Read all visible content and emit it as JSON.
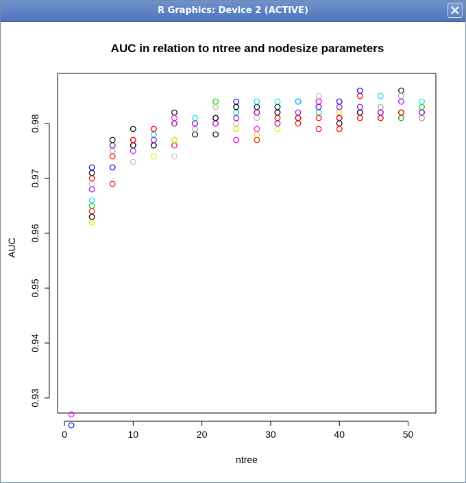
{
  "window": {
    "title": "R Graphics: Device 2 (ACTIVE)"
  },
  "chart_data": {
    "type": "scatter",
    "title": "AUC in relation to ntree and nodesize parameters",
    "xlabel": "ntree",
    "ylabel": "AUC",
    "xlim": [
      0,
      52
    ],
    "ylim": [
      0.925,
      0.986
    ],
    "x_ticks": [
      0,
      10,
      20,
      30,
      40,
      50
    ],
    "y_ticks": [
      0.93,
      0.94,
      0.95,
      0.96,
      0.97,
      0.98
    ],
    "x_tick_labels": [
      "0",
      "10",
      "20",
      "30",
      "40",
      "50"
    ],
    "y_tick_labels": [
      "0.93",
      "0.94",
      "0.95",
      "0.96",
      "0.97",
      "0.98"
    ],
    "grid": false,
    "legend": "none",
    "x": [
      1,
      4,
      7,
      10,
      13,
      16,
      19,
      22,
      25,
      28,
      31,
      34,
      37,
      40,
      43,
      46,
      49,
      52
    ],
    "series": [
      {
        "color": "#000000",
        "values": [
          null,
          0.971,
          0.977,
          0.979,
          0.977,
          0.982,
          0.978,
          0.978,
          0.983,
          0.983,
          0.983,
          0.984,
          0.984,
          0.98,
          0.983,
          0.983,
          0.986,
          0.981
        ]
      },
      {
        "color": "#ff0000",
        "values": [
          null,
          0.964,
          0.969,
          0.977,
          0.979,
          0.976,
          0.979,
          0.981,
          0.977,
          0.977,
          0.98,
          0.98,
          0.979,
          0.979,
          0.985,
          0.981,
          0.981,
          0.981
        ]
      },
      {
        "color": "#00cd00",
        "values": [
          null,
          0.965,
          0.975,
          0.976,
          0.977,
          0.977,
          0.98,
          0.984,
          0.979,
          0.982,
          0.981,
          0.981,
          0.983,
          0.981,
          0.983,
          0.982,
          0.981,
          0.983
        ]
      },
      {
        "color": "#0000ff",
        "values": [
          0.925,
          0.972,
          0.972,
          0.976,
          0.976,
          0.98,
          0.98,
          0.981,
          0.984,
          0.982,
          0.982,
          0.984,
          0.983,
          0.984,
          0.986,
          0.982,
          0.982,
          0.982
        ]
      },
      {
        "color": "#00dddd",
        "values": [
          null,
          0.966,
          0.975,
          0.977,
          0.978,
          0.977,
          0.981,
          0.983,
          0.982,
          0.984,
          0.984,
          0.984,
          0.982,
          0.982,
          0.982,
          0.985,
          0.985,
          0.984
        ]
      },
      {
        "color": "#ff00ff",
        "values": [
          0.927,
          0.968,
          0.976,
          0.977,
          0.979,
          0.981,
          0.979,
          0.98,
          0.977,
          0.979,
          0.98,
          0.982,
          0.984,
          0.983,
          0.983,
          0.982,
          0.984,
          0.982
        ]
      },
      {
        "color": "#e8e800",
        "values": [
          null,
          0.962,
          0.975,
          0.976,
          0.974,
          0.977,
          0.98,
          0.983,
          0.979,
          0.978,
          0.979,
          0.982,
          0.981,
          0.982,
          0.981,
          0.982,
          0.982,
          0.982
        ]
      },
      {
        "color": "#bebebe",
        "values": [
          null,
          0.969,
          0.975,
          0.973,
          0.977,
          0.974,
          0.979,
          0.983,
          0.98,
          0.981,
          0.982,
          0.982,
          0.985,
          0.981,
          0.982,
          0.983,
          0.985,
          0.981
        ]
      },
      {
        "color": "#000000",
        "values": [
          null,
          0.963,
          0.976,
          0.976,
          0.976,
          0.98,
          0.98,
          0.981,
          0.983,
          0.982,
          0.982,
          0.981,
          0.983,
          0.981,
          0.982,
          0.982,
          0.982,
          0.982
        ]
      },
      {
        "color": "#ff0000",
        "values": [
          null,
          0.97,
          0.974,
          0.977,
          0.979,
          0.98,
          0.98,
          0.98,
          0.981,
          0.982,
          0.981,
          0.981,
          0.981,
          0.981,
          0.981,
          0.981,
          0.982,
          0.982
        ]
      },
      {
        "color": "#a020f0",
        "values": [
          null,
          0.968,
          0.976,
          0.975,
          0.977,
          0.98,
          0.98,
          0.98,
          0.981,
          0.982,
          0.98,
          0.982,
          0.983,
          0.983,
          0.983,
          0.982,
          0.984,
          0.982
        ]
      }
    ]
  }
}
